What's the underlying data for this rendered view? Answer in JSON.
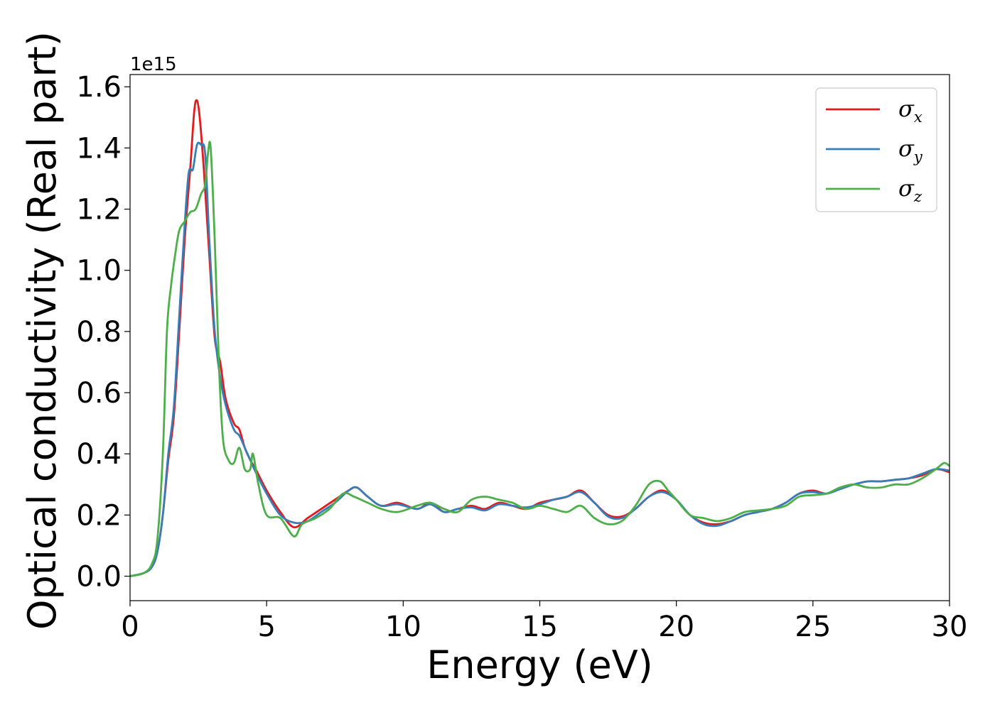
{
  "chart_data": {
    "type": "line",
    "title": "",
    "xlabel": "Energy (eV)",
    "ylabel": "Optical conductivity (Real part)",
    "y_offset_text": "1e15",
    "xlim": [
      0,
      30
    ],
    "ylim": [
      -0.08,
      1.64
    ],
    "x_ticks": [
      0,
      5,
      10,
      15,
      20,
      25,
      30
    ],
    "x_tick_labels": [
      "0",
      "5",
      "10",
      "15",
      "20",
      "25",
      "30"
    ],
    "y_ticks": [
      0.0,
      0.2,
      0.4,
      0.6,
      0.8,
      1.0,
      1.2,
      1.4,
      1.6
    ],
    "y_tick_labels": [
      "0.0",
      "0.2",
      "0.4",
      "0.6",
      "0.8",
      "1.0",
      "1.2",
      "1.4",
      "1.6"
    ],
    "grid": false,
    "legend_position": "top-right",
    "series": [
      {
        "name": "σx",
        "legend_symbol": "σ",
        "legend_subscript": "x",
        "color": "#e41a1c",
        "points": [
          [
            0,
            0
          ],
          [
            0.5,
            0.01
          ],
          [
            0.8,
            0.03
          ],
          [
            1.0,
            0.08
          ],
          [
            1.2,
            0.2
          ],
          [
            1.4,
            0.38
          ],
          [
            1.6,
            0.52
          ],
          [
            1.8,
            0.8
          ],
          [
            2.0,
            1.1
          ],
          [
            2.2,
            1.33
          ],
          [
            2.35,
            1.52
          ],
          [
            2.45,
            1.555
          ],
          [
            2.55,
            1.5
          ],
          [
            2.7,
            1.33
          ],
          [
            2.9,
            1.05
          ],
          [
            3.1,
            0.78
          ],
          [
            3.3,
            0.7
          ],
          [
            3.5,
            0.58
          ],
          [
            3.8,
            0.5
          ],
          [
            4.0,
            0.48
          ],
          [
            4.2,
            0.42
          ],
          [
            4.4,
            0.38
          ],
          [
            4.6,
            0.35
          ],
          [
            5.0,
            0.28
          ],
          [
            5.5,
            0.21
          ],
          [
            6.0,
            0.16
          ],
          [
            6.5,
            0.19
          ],
          [
            7.0,
            0.22
          ],
          [
            7.5,
            0.25
          ],
          [
            8.0,
            0.28
          ],
          [
            8.3,
            0.29
          ],
          [
            8.7,
            0.26
          ],
          [
            9.2,
            0.23
          ],
          [
            9.8,
            0.24
          ],
          [
            10.5,
            0.22
          ],
          [
            11.0,
            0.24
          ],
          [
            11.5,
            0.21
          ],
          [
            12.0,
            0.22
          ],
          [
            12.5,
            0.23
          ],
          [
            13.0,
            0.22
          ],
          [
            13.5,
            0.24
          ],
          [
            14.0,
            0.23
          ],
          [
            14.5,
            0.22
          ],
          [
            15.0,
            0.24
          ],
          [
            15.5,
            0.25
          ],
          [
            16.0,
            0.26
          ],
          [
            16.5,
            0.28
          ],
          [
            17.0,
            0.24
          ],
          [
            17.5,
            0.2
          ],
          [
            18.0,
            0.195
          ],
          [
            18.5,
            0.22
          ],
          [
            19.0,
            0.26
          ],
          [
            19.5,
            0.28
          ],
          [
            20.0,
            0.25
          ],
          [
            20.5,
            0.2
          ],
          [
            21.0,
            0.175
          ],
          [
            21.5,
            0.17
          ],
          [
            22.0,
            0.18
          ],
          [
            22.5,
            0.2
          ],
          [
            23.0,
            0.21
          ],
          [
            23.5,
            0.22
          ],
          [
            24.0,
            0.24
          ],
          [
            24.5,
            0.27
          ],
          [
            25.0,
            0.28
          ],
          [
            25.5,
            0.27
          ],
          [
            26.0,
            0.29
          ],
          [
            26.5,
            0.3
          ],
          [
            27.0,
            0.31
          ],
          [
            27.5,
            0.31
          ],
          [
            28.0,
            0.315
          ],
          [
            28.5,
            0.32
          ],
          [
            29.0,
            0.33
          ],
          [
            29.5,
            0.35
          ],
          [
            30.0,
            0.34
          ]
        ]
      },
      {
        "name": "σy",
        "legend_symbol": "σ",
        "legend_subscript": "y",
        "color": "#377eb8",
        "points": [
          [
            0,
            0
          ],
          [
            0.5,
            0.01
          ],
          [
            0.8,
            0.03
          ],
          [
            1.0,
            0.08
          ],
          [
            1.2,
            0.2
          ],
          [
            1.4,
            0.4
          ],
          [
            1.6,
            0.55
          ],
          [
            1.8,
            0.85
          ],
          [
            2.0,
            1.15
          ],
          [
            2.15,
            1.32
          ],
          [
            2.3,
            1.33
          ],
          [
            2.45,
            1.41
          ],
          [
            2.6,
            1.41
          ],
          [
            2.75,
            1.38
          ],
          [
            2.9,
            1.1
          ],
          [
            3.1,
            0.8
          ],
          [
            3.3,
            0.65
          ],
          [
            3.5,
            0.56
          ],
          [
            3.8,
            0.48
          ],
          [
            4.0,
            0.46
          ],
          [
            4.2,
            0.42
          ],
          [
            4.4,
            0.38
          ],
          [
            4.6,
            0.34
          ],
          [
            5.0,
            0.27
          ],
          [
            5.5,
            0.2
          ],
          [
            6.0,
            0.175
          ],
          [
            6.5,
            0.18
          ],
          [
            7.0,
            0.21
          ],
          [
            7.5,
            0.24
          ],
          [
            8.0,
            0.28
          ],
          [
            8.3,
            0.29
          ],
          [
            8.7,
            0.26
          ],
          [
            9.2,
            0.23
          ],
          [
            9.8,
            0.235
          ],
          [
            10.5,
            0.22
          ],
          [
            11.0,
            0.235
          ],
          [
            11.5,
            0.21
          ],
          [
            12.0,
            0.22
          ],
          [
            12.5,
            0.225
          ],
          [
            13.0,
            0.215
          ],
          [
            13.5,
            0.235
          ],
          [
            14.0,
            0.23
          ],
          [
            14.5,
            0.225
          ],
          [
            15.0,
            0.235
          ],
          [
            15.5,
            0.25
          ],
          [
            16.0,
            0.26
          ],
          [
            16.5,
            0.275
          ],
          [
            17.0,
            0.24
          ],
          [
            17.5,
            0.195
          ],
          [
            18.0,
            0.19
          ],
          [
            18.5,
            0.22
          ],
          [
            19.0,
            0.26
          ],
          [
            19.5,
            0.275
          ],
          [
            20.0,
            0.25
          ],
          [
            20.5,
            0.2
          ],
          [
            21.0,
            0.17
          ],
          [
            21.5,
            0.165
          ],
          [
            22.0,
            0.18
          ],
          [
            22.5,
            0.2
          ],
          [
            23.0,
            0.21
          ],
          [
            23.5,
            0.22
          ],
          [
            24.0,
            0.24
          ],
          [
            24.5,
            0.27
          ],
          [
            25.0,
            0.275
          ],
          [
            25.5,
            0.27
          ],
          [
            26.0,
            0.285
          ],
          [
            26.5,
            0.3
          ],
          [
            27.0,
            0.31
          ],
          [
            27.5,
            0.31
          ],
          [
            28.0,
            0.315
          ],
          [
            28.5,
            0.32
          ],
          [
            29.0,
            0.335
          ],
          [
            29.5,
            0.35
          ],
          [
            30.0,
            0.345
          ]
        ]
      },
      {
        "name": "σz",
        "legend_symbol": "σ",
        "legend_subscript": "z",
        "color": "#4daf4a",
        "points": [
          [
            0,
            0
          ],
          [
            0.5,
            0.01
          ],
          [
            0.8,
            0.04
          ],
          [
            1.0,
            0.12
          ],
          [
            1.2,
            0.4
          ],
          [
            1.35,
            0.8
          ],
          [
            1.5,
            0.95
          ],
          [
            1.65,
            1.05
          ],
          [
            1.8,
            1.13
          ],
          [
            2.0,
            1.16
          ],
          [
            2.2,
            1.19
          ],
          [
            2.4,
            1.2
          ],
          [
            2.6,
            1.25
          ],
          [
            2.75,
            1.28
          ],
          [
            2.85,
            1.38
          ],
          [
            2.95,
            1.4
          ],
          [
            3.1,
            1.1
          ],
          [
            3.25,
            0.7
          ],
          [
            3.4,
            0.45
          ],
          [
            3.6,
            0.38
          ],
          [
            3.8,
            0.37
          ],
          [
            4.0,
            0.42
          ],
          [
            4.2,
            0.35
          ],
          [
            4.4,
            0.35
          ],
          [
            4.5,
            0.4
          ],
          [
            4.7,
            0.3
          ],
          [
            5.0,
            0.2
          ],
          [
            5.5,
            0.19
          ],
          [
            6.0,
            0.13
          ],
          [
            6.3,
            0.17
          ],
          [
            6.8,
            0.19
          ],
          [
            7.3,
            0.22
          ],
          [
            7.8,
            0.27
          ],
          [
            8.2,
            0.26
          ],
          [
            8.7,
            0.24
          ],
          [
            9.2,
            0.22
          ],
          [
            9.8,
            0.21
          ],
          [
            10.5,
            0.23
          ],
          [
            11.0,
            0.24
          ],
          [
            11.5,
            0.22
          ],
          [
            12.0,
            0.21
          ],
          [
            12.5,
            0.25
          ],
          [
            13.0,
            0.26
          ],
          [
            13.5,
            0.25
          ],
          [
            14.0,
            0.24
          ],
          [
            14.5,
            0.22
          ],
          [
            15.0,
            0.23
          ],
          [
            15.5,
            0.22
          ],
          [
            16.0,
            0.21
          ],
          [
            16.5,
            0.23
          ],
          [
            17.0,
            0.19
          ],
          [
            17.5,
            0.17
          ],
          [
            18.0,
            0.18
          ],
          [
            18.5,
            0.23
          ],
          [
            19.0,
            0.3
          ],
          [
            19.4,
            0.31
          ],
          [
            19.7,
            0.28
          ],
          [
            20.0,
            0.25
          ],
          [
            20.5,
            0.2
          ],
          [
            21.0,
            0.19
          ],
          [
            21.5,
            0.18
          ],
          [
            22.0,
            0.19
          ],
          [
            22.5,
            0.21
          ],
          [
            23.0,
            0.215
          ],
          [
            23.5,
            0.22
          ],
          [
            24.0,
            0.23
          ],
          [
            24.5,
            0.26
          ],
          [
            25.0,
            0.265
          ],
          [
            25.5,
            0.27
          ],
          [
            26.0,
            0.29
          ],
          [
            26.5,
            0.3
          ],
          [
            27.0,
            0.29
          ],
          [
            27.5,
            0.29
          ],
          [
            28.0,
            0.3
          ],
          [
            28.5,
            0.3
          ],
          [
            29.0,
            0.32
          ],
          [
            29.5,
            0.35
          ],
          [
            29.8,
            0.37
          ],
          [
            30.0,
            0.36
          ]
        ]
      }
    ]
  }
}
